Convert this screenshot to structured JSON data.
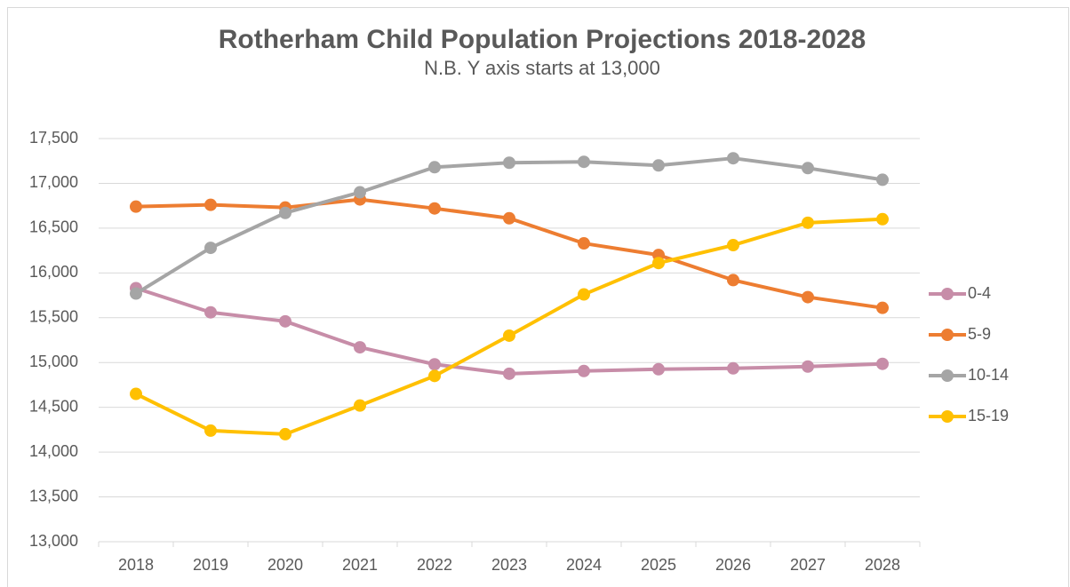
{
  "chart_data": {
    "type": "line",
    "title": "Rotherham Child Population Projections 2018-2028",
    "subtitle": "N.B. Y axis starts at 13,000",
    "categories": [
      "2018",
      "2019",
      "2020",
      "2021",
      "2022",
      "2023",
      "2024",
      "2025",
      "2026",
      "2027",
      "2028"
    ],
    "series": [
      {
        "name": "0-4",
        "color": "#c78da8",
        "values": [
          15830,
          15560,
          15460,
          15170,
          14980,
          14875,
          14905,
          14925,
          14935,
          14955,
          14985
        ]
      },
      {
        "name": "5-9",
        "color": "#ed7d31",
        "values": [
          16740,
          16760,
          16730,
          16820,
          16720,
          16610,
          16330,
          16200,
          15920,
          15730,
          15610
        ]
      },
      {
        "name": "10-14",
        "color": "#a5a5a5",
        "values": [
          15770,
          16280,
          16670,
          16900,
          17180,
          17230,
          17240,
          17200,
          17280,
          17170,
          17040
        ]
      },
      {
        "name": "15-19",
        "color": "#ffc000",
        "values": [
          14650,
          14240,
          14200,
          14520,
          14850,
          15300,
          15760,
          16110,
          16310,
          16560,
          16600
        ]
      }
    ],
    "ylim": [
      13000,
      17500
    ],
    "yticks": [
      {
        "value": 13000,
        "label": "13,000"
      },
      {
        "value": 13500,
        "label": "13,500"
      },
      {
        "value": 14000,
        "label": "14,000"
      },
      {
        "value": 14500,
        "label": "14,500"
      },
      {
        "value": 15000,
        "label": "15,000"
      },
      {
        "value": 15500,
        "label": "15,500"
      },
      {
        "value": 16000,
        "label": "16,000"
      },
      {
        "value": 16500,
        "label": "16,500"
      },
      {
        "value": 17000,
        "label": "17,000"
      },
      {
        "value": 17500,
        "label": "17,500"
      }
    ],
    "grid": true,
    "legend": "right"
  }
}
